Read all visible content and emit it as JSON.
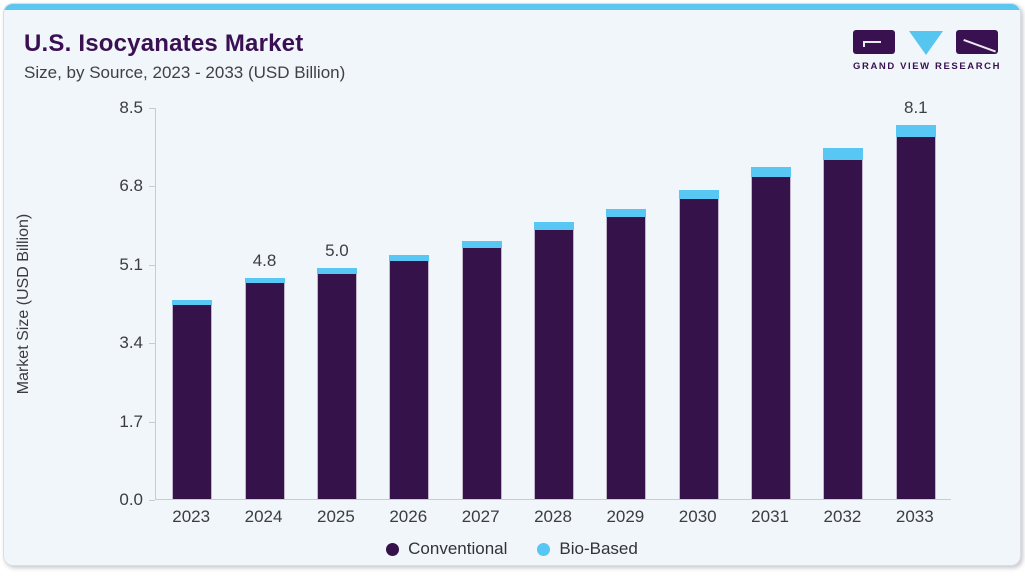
{
  "header": {
    "title": "U.S. Isocyanates Market",
    "subtitle": "Size, by Source, 2023 - 2033 (USD Billion)"
  },
  "logo": {
    "text": "GRAND VIEW RESEARCH"
  },
  "colors": {
    "accent_strip": "#5BC6F0",
    "title_purple": "#3A1053",
    "card_background": "#F0F6FA",
    "axis_line": "#C7CBD2",
    "conventional": "#36124B",
    "bio_based": "#58C7F3"
  },
  "chart_data": {
    "type": "bar",
    "stacked": true,
    "title": "U.S. Isocyanates Market Size, by Source, 2023 - 2033 (USD Billion)",
    "categories": [
      "2023",
      "2024",
      "2025",
      "2026",
      "2027",
      "2028",
      "2029",
      "2030",
      "2031",
      "2032",
      "2033"
    ],
    "series": [
      {
        "name": "Conventional",
        "color": "#36124B",
        "values": [
          4.2,
          4.69,
          4.88,
          5.17,
          5.45,
          5.83,
          6.12,
          6.5,
          6.98,
          7.35,
          7.84
        ]
      },
      {
        "name": "Bio-Based",
        "color": "#58C7F3",
        "values": [
          0.1,
          0.11,
          0.12,
          0.13,
          0.15,
          0.17,
          0.18,
          0.2,
          0.22,
          0.25,
          0.26
        ]
      }
    ],
    "totals": [
      4.3,
      4.8,
      5.0,
      5.3,
      5.6,
      6.0,
      6.3,
      6.7,
      7.2,
      7.6,
      8.1
    ],
    "bar_labels": [
      "",
      "4.8",
      "5.0",
      "",
      "",
      "",
      "",
      "",
      "",
      "",
      "8.1"
    ],
    "ylabel": "Market Size (USD Billion)",
    "ylim": [
      0,
      8.5
    ],
    "yticks": [
      "0.0",
      "1.7",
      "3.4",
      "5.1",
      "6.8",
      "8.5"
    ],
    "grid": false,
    "legend_position": "bottom",
    "legend": [
      "Conventional",
      "Bio-Based"
    ]
  }
}
